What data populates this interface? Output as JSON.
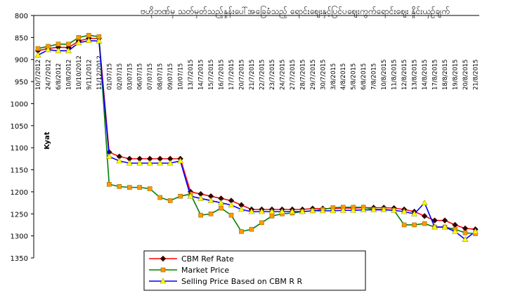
{
  "chart_data": {
    "type": "line",
    "title": "ဗဟိုဘဏ်မှ သတ်မှတ်သည့်နှုန်းပေါ်အခြေခံသည့် ရောင်းဈေးနှင့်ပြင်ပဈေးကွက်ရောင်းဈေး နှိုင်းယှဉ်ချက်",
    "y_label": "Kyat",
    "categories": [
      "10/7/2012",
      "24/7/2012",
      "6/8/2012",
      "10/8/2012",
      "10/10/2012",
      "9/11/2012",
      "11/12/2012",
      "01/07/15",
      "02/07/15",
      "03/07/15",
      "06/07/15",
      "07/07/15",
      "08/07/15",
      "09/07/15",
      "10/07/15",
      "13/7/2015",
      "14/7/2015",
      "15/7/2015",
      "16/7/2015",
      "17/7/2015",
      "20/7/2015",
      "21/7/2015",
      "22/7/2015",
      "23/7/2015",
      "24/7/2015",
      "27/7/2015",
      "28/7/2015",
      "29/7/2015",
      "30/7/2015",
      "3/8/2015",
      "4/8/2015",
      "5/8/2015",
      "6/8/2015",
      "7/8/2015",
      "10/8/2015",
      "11/8/2015",
      "12/8/2015",
      "13/8/2015",
      "14/8/2015",
      "17/8/2015",
      "18/8/2015",
      "19/8/2015",
      "20/8/2015",
      "21/8/2015"
    ],
    "series": [
      {
        "name": "CBM Ref Rate",
        "color": "#ff0000",
        "marker": "diamond",
        "marker_color": "#330000",
        "values": [
          880,
          875,
          872,
          873,
          858,
          852,
          852,
          1110,
          1120,
          1125,
          1125,
          1125,
          1125,
          1125,
          1125,
          1200,
          1205,
          1210,
          1215,
          1220,
          1230,
          1240,
          1240,
          1240,
          1240,
          1240,
          1240,
          1238,
          1238,
          1238,
          1237,
          1237,
          1236,
          1236,
          1236,
          1237,
          1240,
          1245,
          1255,
          1265,
          1265,
          1275,
          1283,
          1285
        ]
      },
      {
        "name": "Market Price",
        "color": "#008000",
        "marker": "square",
        "marker_color": "#ff9900",
        "values": [
          875,
          870,
          865,
          865,
          850,
          845,
          848,
          1183,
          1188,
          1190,
          1190,
          1193,
          1213,
          1220,
          1210,
          1205,
          1253,
          1250,
          1237,
          1253,
          1290,
          1285,
          1270,
          1255,
          1250,
          1248,
          1245,
          1243,
          1240,
          1236,
          1235,
          1235,
          1235,
          1240,
          1240,
          1242,
          1275,
          1275,
          1272,
          1280,
          1280,
          1285,
          1293,
          1295
        ]
      },
      {
        "name": "Selling Price Based on CBM R R",
        "color": "#0000ff",
        "marker": "triangle",
        "marker_color": "#ffff00",
        "values": [
          890,
          878,
          880,
          880,
          862,
          857,
          858,
          1120,
          1130,
          1135,
          1135,
          1135,
          1135,
          1135,
          1130,
          1210,
          1215,
          1220,
          1225,
          1230,
          1240,
          1245,
          1245,
          1245,
          1245,
          1245,
          1245,
          1243,
          1243,
          1243,
          1242,
          1242,
          1241,
          1241,
          1241,
          1242,
          1245,
          1250,
          1225,
          1280,
          1280,
          1290,
          1308,
          1290
        ]
      }
    ],
    "ylim": [
      800,
      1350
    ],
    "yticks": [
      800,
      850,
      900,
      950,
      1000,
      1050,
      1100,
      1150,
      1200,
      1250,
      1300,
      1350
    ],
    "y_inverted": true,
    "legend": "bottom"
  }
}
